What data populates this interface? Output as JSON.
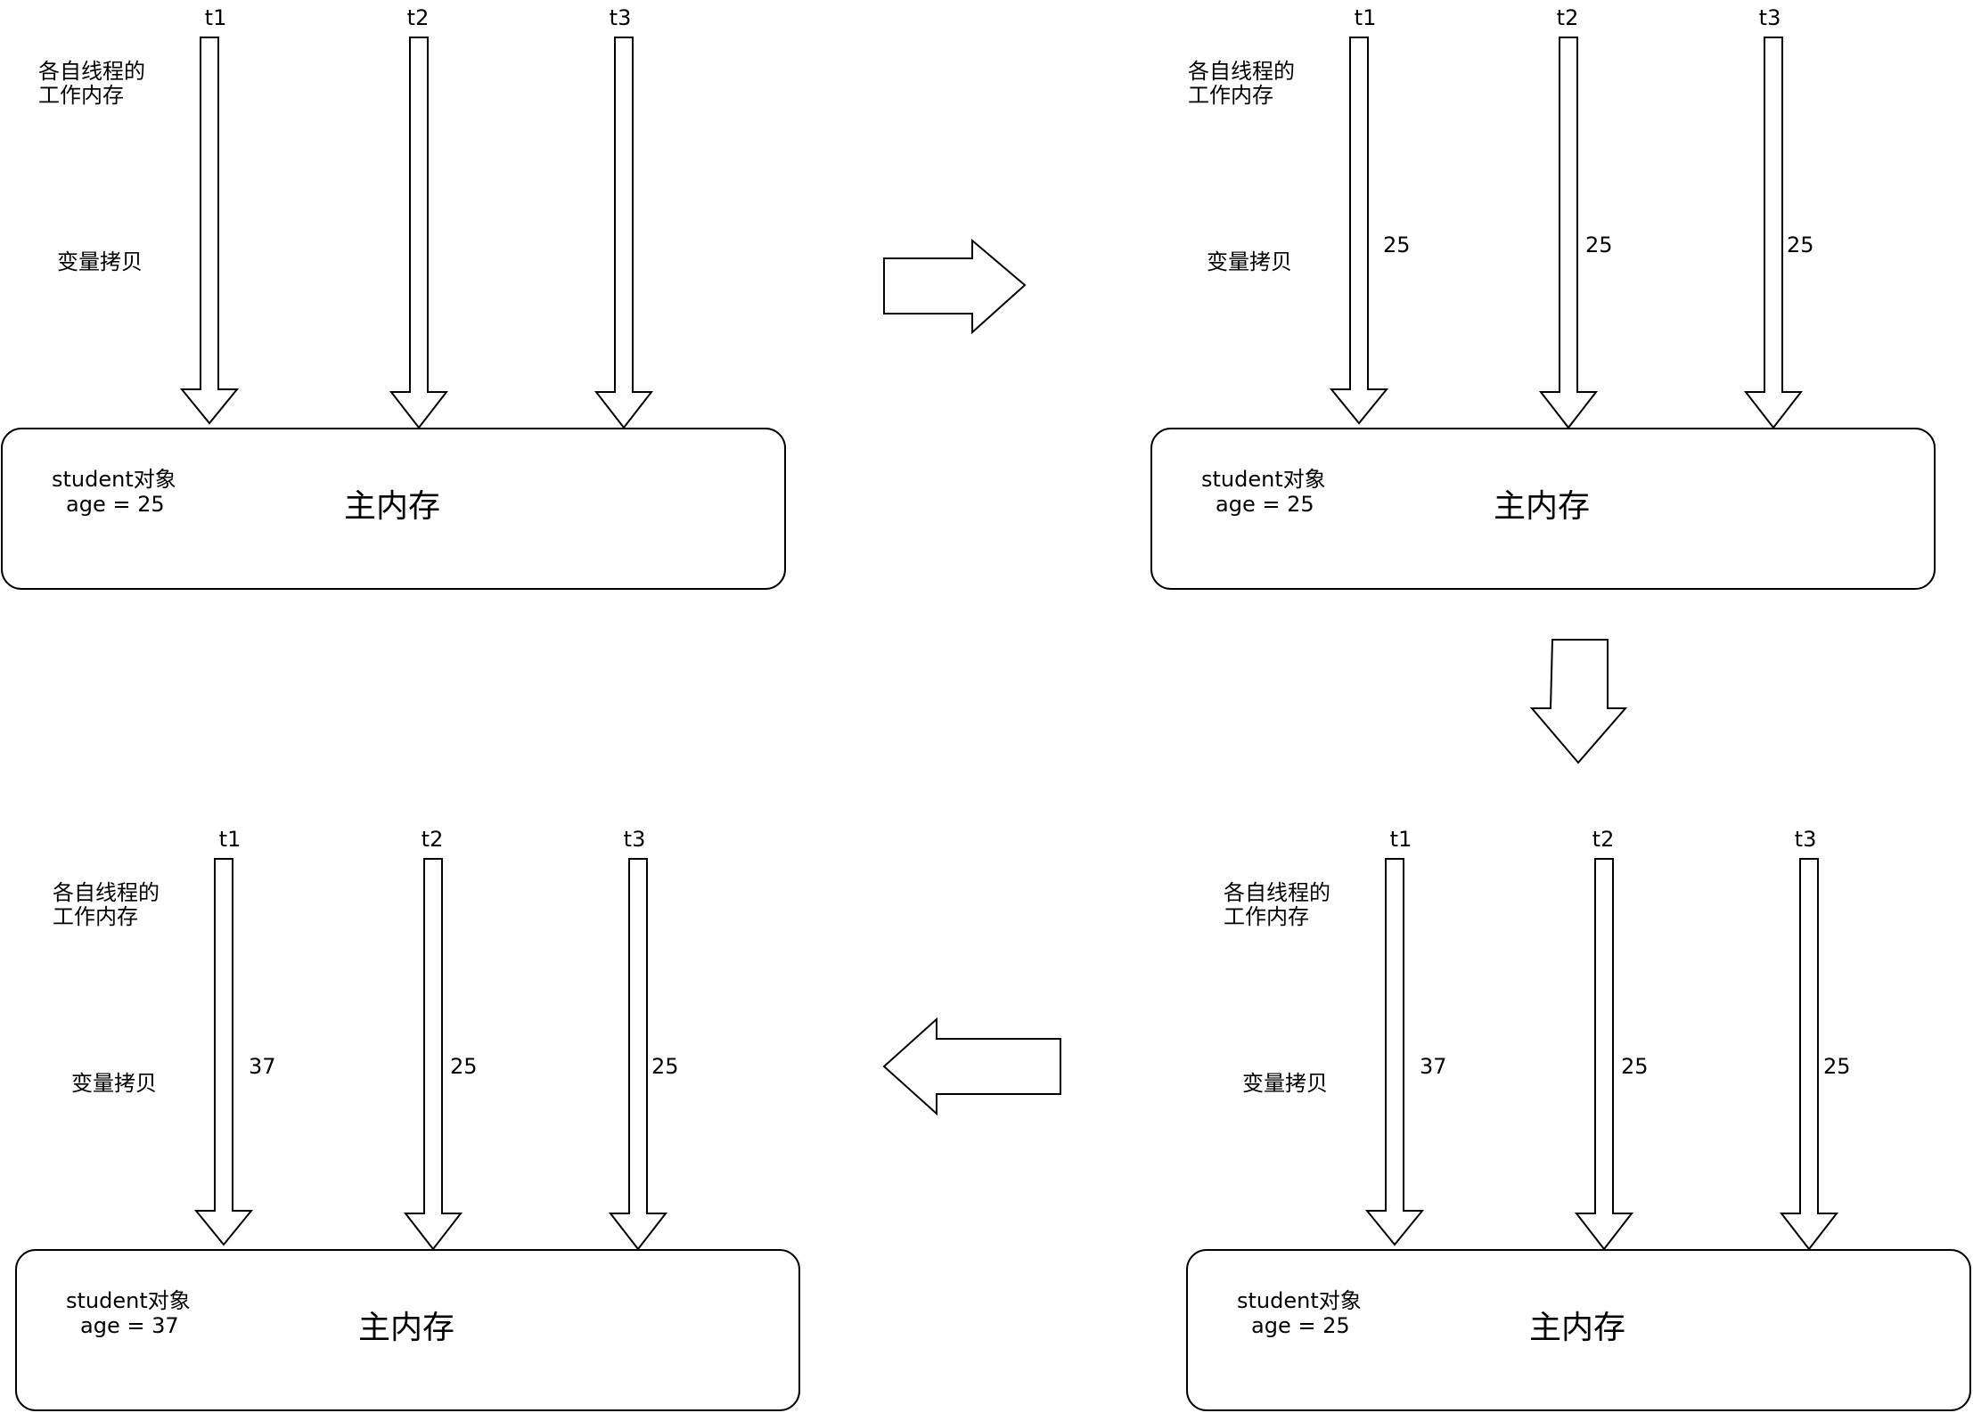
{
  "panels": [
    {
      "threads": [
        {
          "label": "t1",
          "value": ""
        },
        {
          "label": "t2",
          "value": ""
        },
        {
          "label": "t3",
          "value": ""
        }
      ],
      "working_memory_line1": "各自线程的",
      "working_memory_line2": "工作内存",
      "copy_label": "变量拷贝",
      "object_label": "student对象",
      "object_value": "age = 25",
      "main_memory": "主内存"
    },
    {
      "threads": [
        {
          "label": "t1",
          "value": "25"
        },
        {
          "label": "t2",
          "value": "25"
        },
        {
          "label": "t3",
          "value": "25"
        }
      ],
      "working_memory_line1": "各自线程的",
      "working_memory_line2": "工作内存",
      "copy_label": "变量拷贝",
      "object_label": "student对象",
      "object_value": "age = 25",
      "main_memory": "主内存"
    },
    {
      "threads": [
        {
          "label": "t1",
          "value": "37"
        },
        {
          "label": "t2",
          "value": "25"
        },
        {
          "label": "t3",
          "value": "25"
        }
      ],
      "working_memory_line1": "各自线程的",
      "working_memory_line2": "工作内存",
      "copy_label": "变量拷贝",
      "object_label": "student对象",
      "object_value": "age = 37",
      "main_memory": "主内存"
    },
    {
      "threads": [
        {
          "label": "t1",
          "value": "37"
        },
        {
          "label": "t2",
          "value": "25"
        },
        {
          "label": "t3",
          "value": "25"
        }
      ],
      "working_memory_line1": "各自线程的",
      "working_memory_line2": "工作内存",
      "copy_label": "变量拷贝",
      "object_label": "student对象",
      "object_value": "age = 25",
      "main_memory": "主内存"
    }
  ],
  "flow_arrows": [
    "right",
    "down",
    "left"
  ]
}
